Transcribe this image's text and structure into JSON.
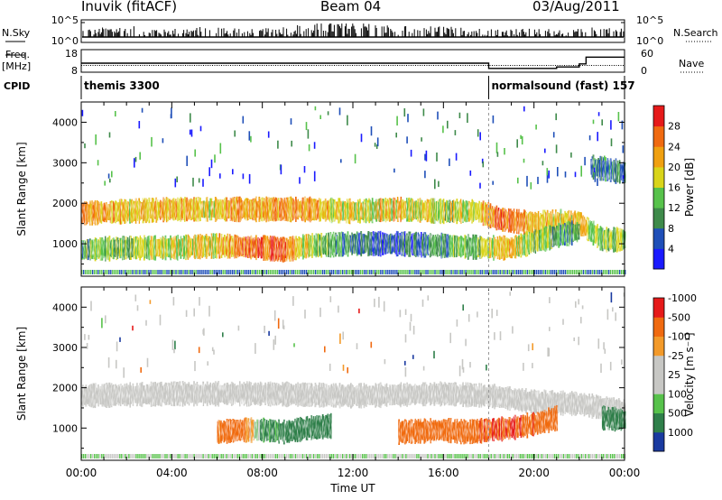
{
  "header": {
    "station": "Inuvik (fitACF)",
    "beam": "Beam 04",
    "date": "03/Aug/2011"
  },
  "side_labels": {
    "nsky": "N.Sky",
    "freq_line1": "Freq.",
    "freq_line2": "[MHz]",
    "cpid": "CPID",
    "nsearch": "N.Search",
    "nave": "Nave"
  },
  "colors": {
    "power": [
      "#1a1aff",
      "#1f4fb8",
      "#3e8a4a",
      "#57c24b",
      "#d9d41a",
      "#f0a010",
      "#f06a10",
      "#e61a1a"
    ],
    "velocity": [
      "#e61a1a",
      "#f06a10",
      "#f39a2a",
      "#c7c7c4",
      "#c7c7c4",
      "#57c24b",
      "#2f7f4a",
      "#1a3aa0"
    ],
    "ground": "#c7c7c4"
  },
  "chart_data": [
    {
      "type": "line",
      "title": "",
      "ylabel": "N.Sky / N.Search",
      "y_ticks_left": [
        "10^5",
        "10^0"
      ],
      "y_ticks_right": [
        "10^5",
        "10^0"
      ],
      "xlim": [
        0,
        24
      ],
      "x": [
        0,
        2,
        4,
        6,
        8,
        10,
        12,
        14,
        16,
        18,
        20,
        22,
        23,
        24
      ],
      "series": [
        {
          "name": "N.Sky",
          "values": [
            3,
            4,
            3,
            4,
            3,
            5,
            6,
            4,
            4,
            3,
            3,
            3,
            4,
            3
          ]
        },
        {
          "name": "N.Search",
          "values": [
            1,
            1,
            1,
            1,
            1,
            1,
            1,
            1,
            1,
            1,
            1,
            1,
            1,
            1
          ]
        }
      ]
    },
    {
      "type": "line",
      "ylabel": "Freq. [MHz] / Nave",
      "ylim_left": [
        8,
        18
      ],
      "y_ticks_left": [
        "18",
        "8"
      ],
      "ylim_right": [
        0,
        60
      ],
      "y_ticks_right": [
        "60",
        "0"
      ],
      "xlim": [
        0,
        24
      ],
      "series": [
        {
          "name": "Freq.",
          "x": [
            0,
            18,
            24
          ],
          "values": [
            11,
            11,
            11
          ]
        },
        {
          "name": "Nave",
          "x": [
            0,
            17.9,
            18,
            20.5,
            21,
            22,
            22.3,
            24
          ],
          "values": [
            24,
            24,
            10,
            10,
            14,
            22,
            40,
            40
          ]
        }
      ]
    },
    {
      "type": "table",
      "ylabel": "CPID",
      "segments": [
        {
          "start_hour": 0,
          "end_hour": 18,
          "label": "themis 3300"
        },
        {
          "start_hour": 18,
          "end_hour": 24,
          "label": "normalsound (fast) 157"
        }
      ]
    },
    {
      "type": "heatmap",
      "title": "Power",
      "ylabel": "Slant Range [km]",
      "ylim": [
        200,
        4500
      ],
      "y_ticks": [
        1000,
        2000,
        3000,
        4000
      ],
      "xlim": [
        0,
        24
      ],
      "colorbar_label": "Power [dB]",
      "colorbar_ticks": [
        4,
        8,
        12,
        16,
        20,
        24,
        28
      ],
      "colorbar_range": [
        0,
        32
      ],
      "bands": [
        {
          "x": [
            0,
            2,
            4,
            6,
            8,
            10,
            12,
            14,
            16,
            17.5,
            18.5,
            20,
            21,
            22,
            23,
            24
          ],
          "range_center": [
            1750,
            1800,
            1850,
            1850,
            1850,
            1850,
            1800,
            1850,
            1800,
            1800,
            1600,
            1500,
            1550,
            1500,
            1100,
            1100
          ],
          "power": [
            24,
            20,
            22,
            20,
            24,
            22,
            18,
            20,
            16,
            18,
            26,
            22,
            18,
            20,
            16,
            14
          ]
        },
        {
          "x": [
            0,
            2,
            4,
            6,
            8,
            9,
            10,
            12,
            14,
            16,
            18,
            19,
            20,
            21,
            22
          ],
          "range_center": [
            850,
            900,
            900,
            950,
            900,
            850,
            950,
            1000,
            1000,
            950,
            900,
            900,
            1050,
            1200,
            1300
          ],
          "power": [
            12,
            14,
            18,
            20,
            26,
            28,
            16,
            8,
            6,
            10,
            18,
            20,
            16,
            12,
            8
          ]
        },
        {
          "x": [
            22.5,
            23,
            23.5,
            24
          ],
          "range_center": [
            2900,
            2850,
            2800,
            2750
          ],
          "power": [
            8,
            10,
            8,
            8
          ]
        }
      ]
    },
    {
      "type": "heatmap",
      "title": "Velocity",
      "ylabel": "Slant Range [km]",
      "ylim": [
        200,
        4500
      ],
      "y_ticks": [
        1000,
        2000,
        3000,
        4000
      ],
      "xlim": [
        0,
        24
      ],
      "x_ticks": [
        "00:00",
        "04:00",
        "08:00",
        "12:00",
        "16:00",
        "20:00",
        "00:00"
      ],
      "xlabel": "Time UT",
      "colorbar_label": "Velocity [m s⁻¹]",
      "colorbar_ticks": [
        "1000",
        "500",
        "100",
        "25",
        "-25",
        "-100",
        "-500",
        "-1000"
      ],
      "bands": [
        {
          "x": [
            0,
            4,
            8,
            12,
            16,
            18,
            20,
            22,
            24
          ],
          "range_center": [
            1800,
            1850,
            1850,
            1800,
            1850,
            1800,
            1650,
            1600,
            1400
          ],
          "velocity": [
            0,
            0,
            0,
            0,
            0,
            0,
            0,
            0,
            0
          ],
          "ground_scatter": true
        },
        {
          "x": [
            6,
            7,
            8,
            9,
            10,
            11
          ],
          "range_center": [
            900,
            950,
            950,
            900,
            1000,
            1050
          ],
          "velocity": [
            -150,
            -200,
            100,
            150,
            200,
            150
          ]
        },
        {
          "x": [
            14,
            16,
            17,
            18,
            19,
            20,
            21
          ],
          "range_center": [
            900,
            950,
            900,
            950,
            1000,
            1100,
            1250
          ],
          "velocity": [
            -200,
            -300,
            -400,
            -500,
            -500,
            -450,
            -300
          ]
        },
        {
          "x": [
            23,
            24
          ],
          "range_center": [
            1250,
            1200
          ],
          "velocity": [
            200,
            150
          ]
        }
      ]
    }
  ]
}
